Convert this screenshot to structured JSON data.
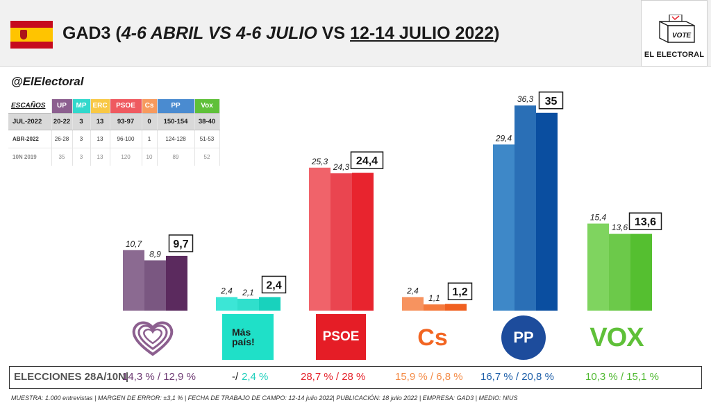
{
  "header": {
    "title_pollster": "GAD3",
    "title_open": " (",
    "title_period1": "4-6 ABRIL",
    "title_vs1": " VS ",
    "title_period2": "4-6 JULIO",
    "title_vs2": " VS ",
    "title_period3": "12-14 JULIO 2022",
    "title_close": ")"
  },
  "brand": {
    "badge_text": "VOTE",
    "name": "EL ELECTORAL"
  },
  "handle": "@ElElectoral",
  "seats_table": {
    "label": "ESCAÑOS",
    "parties": [
      {
        "name": "UP",
        "color": "#8c5f8f"
      },
      {
        "name": "MP",
        "color": "#32d8cc"
      },
      {
        "name": "ERC",
        "color": "#f8c845"
      },
      {
        "name": "PSOE",
        "color": "#ef5a60"
      },
      {
        "name": "Cs",
        "color": "#f79a5e"
      },
      {
        "name": "PP",
        "color": "#4a8bd0"
      },
      {
        "name": "Vox",
        "color": "#5fc039"
      }
    ],
    "rows": [
      {
        "label": "JUL-2022",
        "values": [
          "20-22",
          "3",
          "13",
          "93-97",
          "0",
          "150-154",
          "38-40"
        ]
      },
      {
        "label": "ABR-2022",
        "values": [
          "26-28",
          "3",
          "13",
          "96-100",
          "1",
          "124-128",
          "51-53"
        ]
      },
      {
        "label": "10N 2019",
        "values": [
          "35",
          "3",
          "13",
          "120",
          "10",
          "89",
          "52"
        ]
      }
    ]
  },
  "chart_data": {
    "type": "bar",
    "categories": [
      "UP",
      "MP",
      "PSOE",
      "Cs",
      "PP",
      "Vox"
    ],
    "series": [
      {
        "name": "4-6 ABRIL",
        "values": [
          10.7,
          2.4,
          25.3,
          2.4,
          29.4,
          15.4
        ]
      },
      {
        "name": "4-6 JULIO",
        "values": [
          8.9,
          2.1,
          24.3,
          1.1,
          36.3,
          13.6
        ]
      },
      {
        "name": "12-14 JULIO 2022",
        "values": [
          9.7,
          2.4,
          24.4,
          1.2,
          35.0,
          13.6
        ]
      }
    ],
    "value_labels": [
      [
        "10,7",
        "8,9",
        "9,7"
      ],
      [
        "2,4",
        "2,1",
        "2,4"
      ],
      [
        "25,3",
        "24,3",
        "24,4"
      ],
      [
        "2,4",
        "1,1",
        "1,2"
      ],
      [
        "29,4",
        "36,3",
        "35"
      ],
      [
        "15,4",
        "13,6",
        "13,6"
      ]
    ],
    "colors": [
      [
        "#8b6a91",
        "#7a5781",
        "#5b2a5e"
      ],
      [
        "#3ce6d6",
        "#30dfcc",
        "#18d2bd"
      ],
      [
        "#f0636a",
        "#ea4550",
        "#e8242e"
      ],
      [
        "#f7935f",
        "#f57a3d",
        "#f06020"
      ],
      [
        "#3e88c8",
        "#2a6fb6",
        "#0a4ea0"
      ],
      [
        "#7fd45f",
        "#6cc94a",
        "#55bf30"
      ]
    ],
    "ylim": [
      0,
      40
    ],
    "grid": false,
    "legend": "none"
  },
  "logos": {
    "mp_line1": "Más",
    "mp_line2": "país!",
    "psoe": "PSOE",
    "cs": "Cs",
    "pp": "PP",
    "vox": "VOX"
  },
  "results": {
    "label": "ELECCIONES 28A/10N|",
    "items": [
      {
        "text": "14,3 % / 12,9 %",
        "color": "#6e3b73"
      },
      {
        "text": "-/",
        "color": "#1a1a1a"
      },
      {
        "text": "2,4 %",
        "color": "#1fcfbc"
      },
      {
        "text": "28,7  % / 28 %",
        "color": "#e5232c"
      },
      {
        "text": "15,9 % / 6,8 %",
        "color": "#f38a45"
      },
      {
        "text": "16,7 % / 20,8 %",
        "color": "#1d5ea8"
      },
      {
        "text": "10,3 % / 15,1 %",
        "color": "#4fb830"
      }
    ]
  },
  "footer": "MUESTRA: 1.000 entrevistas | MARGEN DE ERROR: ±3,1 % | FECHA DE TRABAJO DE CAMPO: 12-14 julio 2022| PUBLICACIÓN: 18 julio 2022 | EMPRESA: GAD3 | MEDIO: NIUS"
}
